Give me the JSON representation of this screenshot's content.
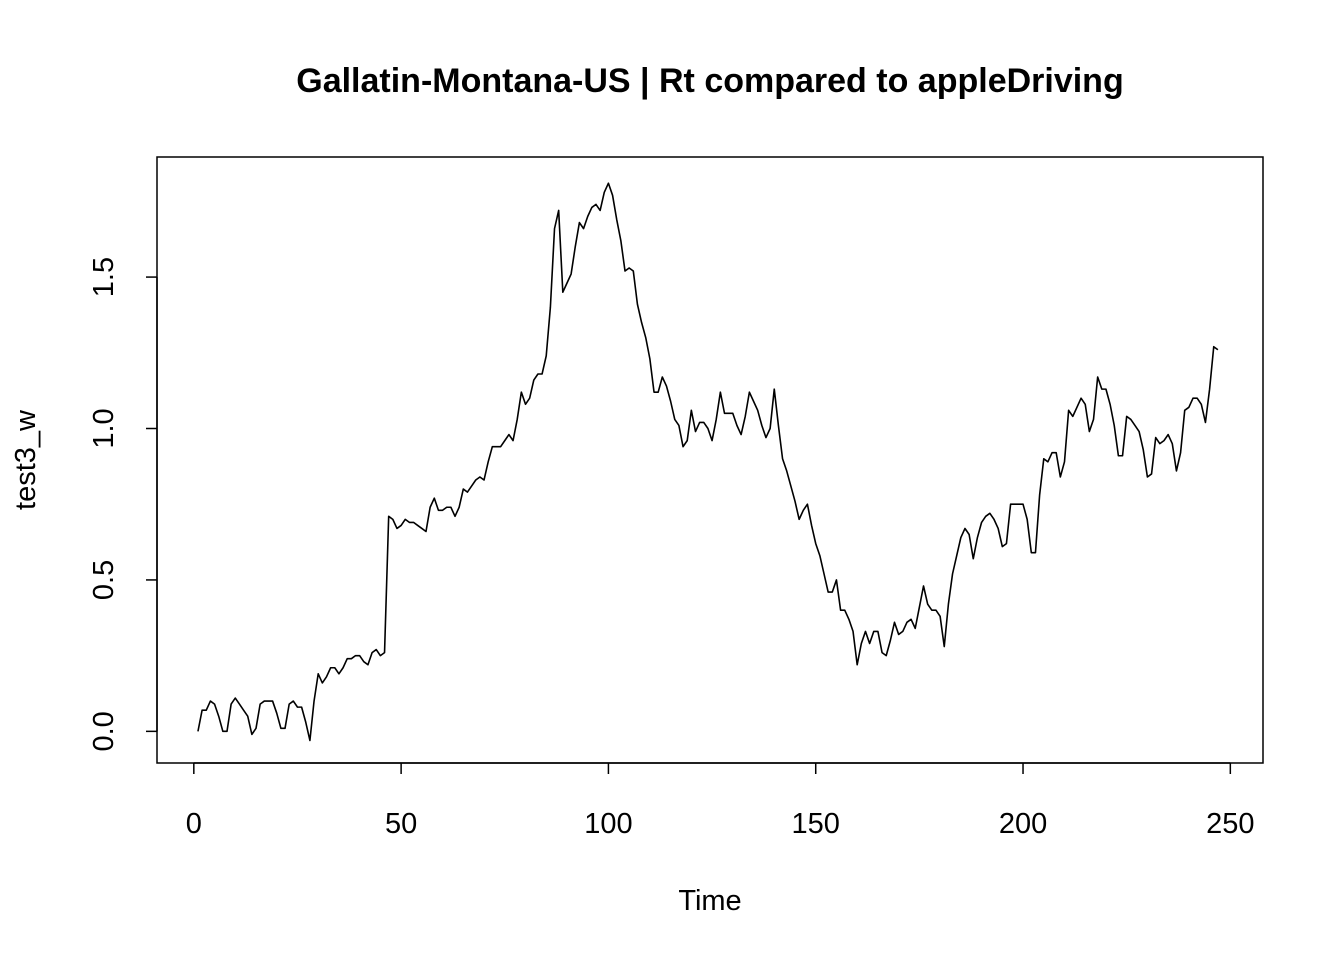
{
  "chart_data": {
    "type": "line",
    "title": "Gallatin-Montana-US | Rt compared to appleDriving",
    "xlabel": "Time",
    "ylabel": "test3_w",
    "xlim": [
      -8.88,
      257.88
    ],
    "ylim": [
      -0.1045,
      1.8965
    ],
    "x_ticks": [
      0,
      50,
      100,
      150,
      200,
      250
    ],
    "y_ticks": [
      0.0,
      0.5,
      1.0,
      1.5
    ],
    "x_tick_labels": [
      "0",
      "50",
      "100",
      "150",
      "200",
      "250"
    ],
    "y_tick_labels": [
      "0.0",
      "0.5",
      "1.0",
      "1.5"
    ],
    "grid": false,
    "line_color": "#000000",
    "series": [
      {
        "x_start": 1,
        "x_step": 1,
        "values": [
          0.0,
          0.07,
          0.07,
          0.1,
          0.09,
          0.05,
          0.0,
          0.0,
          0.09,
          0.11,
          0.09,
          0.07,
          0.05,
          -0.01,
          0.01,
          0.09,
          0.1,
          0.1,
          0.1,
          0.06,
          0.01,
          0.01,
          0.09,
          0.1,
          0.08,
          0.08,
          0.03,
          -0.03,
          0.1,
          0.19,
          0.16,
          0.18,
          0.21,
          0.21,
          0.19,
          0.21,
          0.24,
          0.24,
          0.25,
          0.25,
          0.23,
          0.22,
          0.26,
          0.27,
          0.25,
          0.26,
          0.71,
          0.7,
          0.67,
          0.68,
          0.7,
          0.69,
          0.69,
          0.68,
          0.67,
          0.66,
          0.74,
          0.77,
          0.73,
          0.73,
          0.74,
          0.74,
          0.71,
          0.74,
          0.8,
          0.79,
          0.81,
          0.83,
          0.84,
          0.83,
          0.89,
          0.94,
          0.94,
          0.94,
          0.96,
          0.98,
          0.96,
          1.03,
          1.12,
          1.08,
          1.1,
          1.16,
          1.18,
          1.18,
          1.24,
          1.4,
          1.66,
          1.72,
          1.45,
          1.48,
          1.51,
          1.6,
          1.68,
          1.66,
          1.7,
          1.73,
          1.74,
          1.72,
          1.78,
          1.81,
          1.77,
          1.69,
          1.62,
          1.52,
          1.53,
          1.52,
          1.41,
          1.35,
          1.3,
          1.23,
          1.12,
          1.12,
          1.17,
          1.14,
          1.09,
          1.03,
          1.01,
          0.94,
          0.96,
          1.06,
          0.99,
          1.02,
          1.02,
          1.0,
          0.96,
          1.03,
          1.12,
          1.05,
          1.05,
          1.05,
          1.01,
          0.98,
          1.04,
          1.12,
          1.09,
          1.06,
          1.01,
          0.97,
          1.0,
          1.13,
          1.01,
          0.9,
          0.86,
          0.81,
          0.76,
          0.7,
          0.73,
          0.75,
          0.68,
          0.62,
          0.58,
          0.52,
          0.46,
          0.46,
          0.5,
          0.4,
          0.4,
          0.37,
          0.33,
          0.22,
          0.29,
          0.33,
          0.29,
          0.33,
          0.33,
          0.26,
          0.25,
          0.3,
          0.36,
          0.32,
          0.33,
          0.36,
          0.37,
          0.34,
          0.41,
          0.48,
          0.42,
          0.4,
          0.4,
          0.38,
          0.28,
          0.42,
          0.52,
          0.58,
          0.64,
          0.67,
          0.65,
          0.57,
          0.64,
          0.69,
          0.71,
          0.72,
          0.7,
          0.67,
          0.61,
          0.62,
          0.75,
          0.75,
          0.75,
          0.75,
          0.7,
          0.59,
          0.59,
          0.78,
          0.9,
          0.89,
          0.92,
          0.92,
          0.84,
          0.89,
          1.06,
          1.04,
          1.07,
          1.1,
          1.08,
          0.99,
          1.03,
          1.17,
          1.13,
          1.13,
          1.08,
          1.01,
          0.91,
          0.91,
          1.04,
          1.03,
          1.01,
          0.99,
          0.93,
          0.84,
          0.85,
          0.97,
          0.95,
          0.96,
          0.98,
          0.95,
          0.86,
          0.92,
          1.06,
          1.07,
          1.1,
          1.1,
          1.08,
          1.02,
          1.13,
          1.27,
          1.26
        ]
      }
    ]
  }
}
